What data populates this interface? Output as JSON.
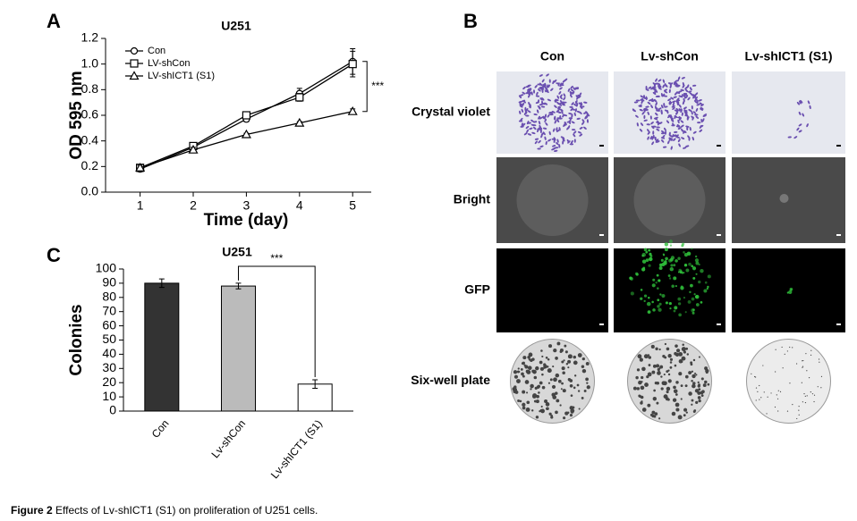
{
  "panel_labels": [
    "A",
    "B",
    "C"
  ],
  "chart_data": [
    {
      "type": "line",
      "title": "U251",
      "xlabel": "Time (day)",
      "ylabel": "OD 595 nm",
      "x": [
        1,
        2,
        3,
        4,
        5
      ],
      "xlim": [
        0.35,
        5.35
      ],
      "xticks": [
        1,
        2,
        3,
        4,
        5
      ],
      "ylim": [
        0,
        1.2
      ],
      "yticks": [
        {
          "value": 0,
          "label": "0.0"
        },
        0.2,
        0.4,
        0.6,
        0.8,
        {
          "value": 1,
          "label": "1.0"
        },
        1.2
      ],
      "legend": "upper left",
      "series": [
        {
          "name": "Con",
          "color": "#000000",
          "marker": "circle",
          "values": [
            0.18,
            0.35,
            0.57,
            0.77,
            1.02
          ],
          "errors": [
            0.02,
            0.02,
            0.02,
            0.04,
            0.1
          ]
        },
        {
          "name": "LV-shCon",
          "color": "#000000",
          "marker": "square",
          "values": [
            0.19,
            0.36,
            0.6,
            0.74,
            1.0
          ],
          "errors": [
            0.02,
            0.02,
            0.02,
            0.03,
            0.1
          ]
        },
        {
          "name": "LV-shICT1 (S1)",
          "color": "#000000",
          "marker": "triangle",
          "values": [
            0.19,
            0.33,
            0.45,
            0.54,
            0.63
          ],
          "errors": [
            0.02,
            0.02,
            0.01,
            0.01,
            0.02
          ]
        }
      ],
      "annotation": "***"
    },
    {
      "type": "bar",
      "title": "U251",
      "ylabel": "Colonies",
      "categories": [
        "Con",
        "Lv-shCon",
        "Lv-shICT1 (S1)"
      ],
      "values": [
        90,
        88,
        19
      ],
      "errors": [
        3,
        2,
        3
      ],
      "colors": [
        "#333333",
        "#bbbbbb",
        "#ffffff"
      ],
      "ylim": [
        0,
        100
      ],
      "yticks": [
        0,
        10,
        20,
        30,
        40,
        50,
        60,
        70,
        80,
        90,
        100
      ],
      "annotation": "***"
    }
  ],
  "image_grid": {
    "columns": [
      "Con",
      "Lv-shCon",
      "Lv-shICT1 (S1)"
    ],
    "rows": [
      "Crystal violet",
      "Bright",
      "GFP",
      "Six-well plate"
    ]
  },
  "caption": {
    "label": "Figure 2",
    "text": "Effects of Lv-shICT1 (S1) on proliferation of U251 cells."
  }
}
